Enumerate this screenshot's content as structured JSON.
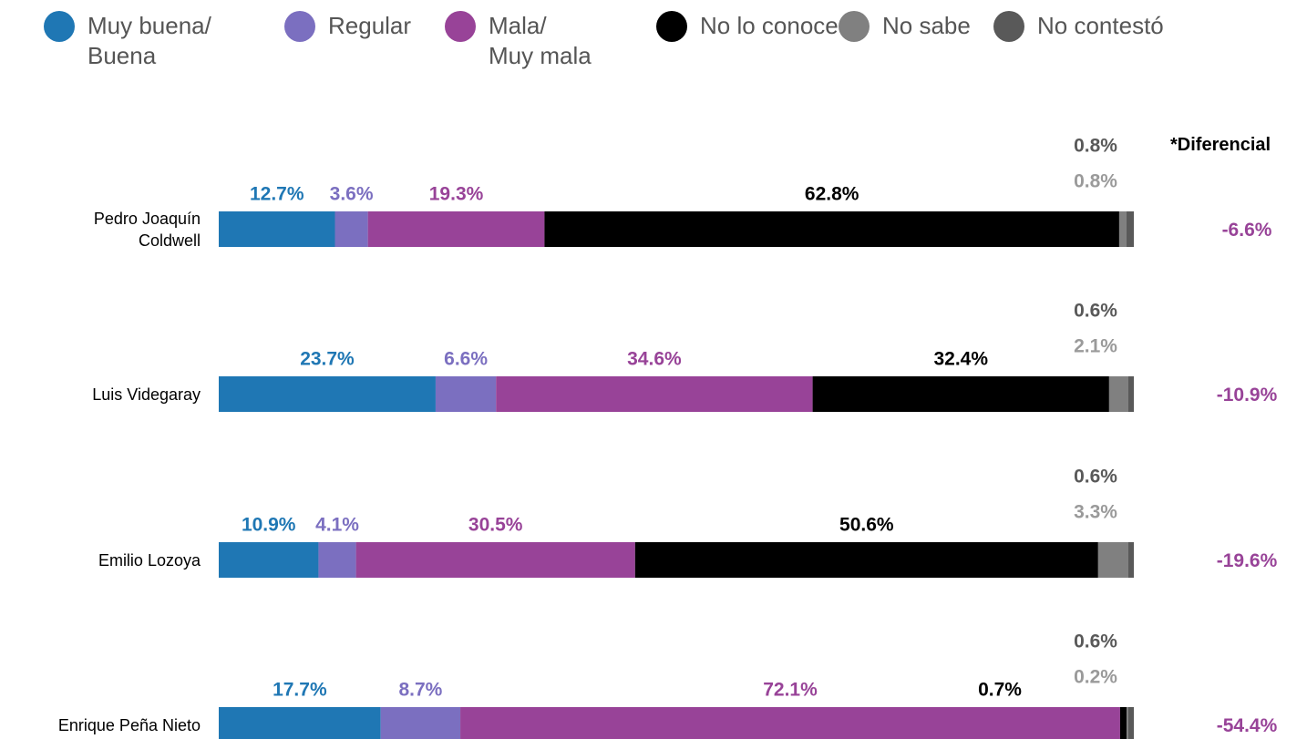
{
  "chart_data": {
    "type": "bar",
    "orientation": "horizontal",
    "stacked": true,
    "categories": [
      "Pedro Joaquín\nColdwell",
      "Luis Videgaray",
      "Emilio Lozoya",
      "Enrique Peña Nieto"
    ],
    "xlim": [
      0,
      100
    ],
    "series": [
      {
        "name": "Muy buena/\nBuena",
        "color": "#1f77b4",
        "label_color": "#1f77b4",
        "values": [
          12.7,
          23.7,
          10.9,
          17.7
        ],
        "value_labels": [
          "12.7%",
          "23.7%",
          "10.9%",
          "17.7%"
        ]
      },
      {
        "name": "Regular",
        "color": "#7b6fc0",
        "label_color": "#7b6fc0",
        "values": [
          3.6,
          6.6,
          4.1,
          8.7
        ],
        "value_labels": [
          "3.6%",
          "6.6%",
          "4.1%",
          "8.7%"
        ]
      },
      {
        "name": "Mala/\nMuy mala",
        "color": "#984398",
        "label_color": "#984398",
        "values": [
          19.3,
          34.6,
          30.5,
          72.1
        ],
        "value_labels": [
          "19.3%",
          "34.6%",
          "30.5%",
          "72.1%"
        ]
      },
      {
        "name": "No lo conoce",
        "color": "#000000",
        "label_color": "#000000",
        "values": [
          62.8,
          32.4,
          50.6,
          0.7
        ],
        "value_labels": [
          "62.8%",
          "32.4%",
          "50.6%",
          "0.7%"
        ]
      },
      {
        "name": "No sabe",
        "color": "#808080",
        "label_color": "#9a9a9a",
        "values": [
          0.8,
          2.1,
          3.3,
          0.2
        ],
        "value_labels": [
          "0.8%",
          "2.1%",
          "3.3%",
          "0.2%"
        ]
      },
      {
        "name": "No contestó",
        "color": "#595959",
        "label_color": "#595959",
        "values": [
          0.8,
          0.6,
          0.6,
          0.6
        ],
        "value_labels": [
          "0.8%",
          "0.6%",
          "0.6%",
          "0.6%"
        ]
      }
    ],
    "differential": {
      "title": "*Diferencial",
      "color": "#984398",
      "values": [
        -6.6,
        -10.9,
        -19.6,
        -54.4
      ],
      "value_labels": [
        "-6.6%",
        "-10.9%",
        "-19.6%",
        "-54.4%"
      ]
    }
  }
}
